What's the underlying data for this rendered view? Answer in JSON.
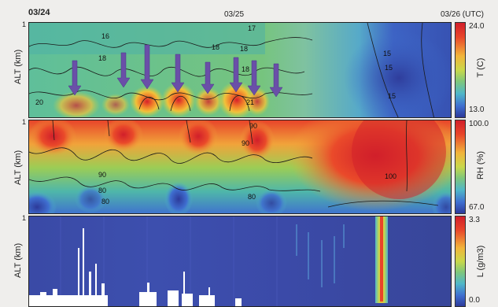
{
  "chart_data": [
    {
      "type": "heatmap",
      "variable": "T",
      "ylabel": "ALT (km)",
      "yticks": [
        "1"
      ],
      "colorbar": {
        "label": "T (C)",
        "min_label": "13.0",
        "max_label": "24.0",
        "min": 13.0,
        "max": 24.0
      },
      "contour_labels": [
        "16",
        "18",
        "18",
        "20",
        "17",
        "18",
        "18",
        "21",
        "15",
        "15",
        "15"
      ],
      "arrows": 8
    },
    {
      "type": "heatmap",
      "variable": "RH",
      "ylabel": "ALT (km)",
      "yticks": [
        "1"
      ],
      "colorbar": {
        "label": "RH (%)",
        "min_label": "67.0",
        "max_label": "100.0",
        "min": 67.0,
        "max": 100.0
      },
      "contour_labels": [
        "90",
        "90",
        "90",
        "80",
        "80",
        "80",
        "100"
      ]
    },
    {
      "type": "heatmap",
      "variable": "L",
      "ylabel": "ALT (km)",
      "yticks": [
        "1"
      ],
      "colorbar": {
        "label": "L (g/m3)",
        "min_label": "0.0",
        "max_label": "3.3",
        "min": 0.0,
        "max": 3.3
      }
    }
  ],
  "time_axis": {
    "start": "03/24",
    "mid": "03/25",
    "end": "03/26 (UTC)"
  },
  "colors": {
    "colormap": [
      "#2d3a9a",
      "#3f6fd0",
      "#4fb7c9",
      "#7fc77a",
      "#c9d84a",
      "#f1b43a",
      "#e8452a",
      "#d11f2a"
    ]
  }
}
